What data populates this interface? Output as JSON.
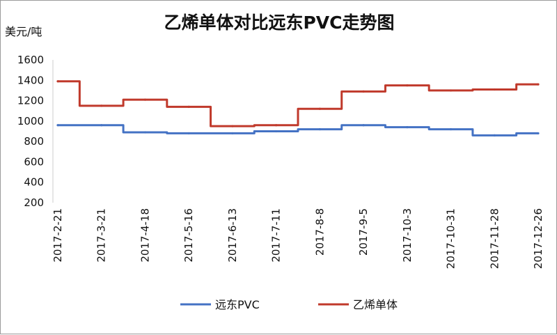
{
  "chart_data": {
    "type": "line",
    "title": "乙烯单体对比远东PVC走势图",
    "ylabel": "美元/吨",
    "xlabel": "",
    "ylim": [
      200,
      1600
    ],
    "yticks": [
      "200",
      "400",
      "600",
      "800",
      "1000",
      "1200",
      "1400",
      "1600"
    ],
    "grid": false,
    "legend_position": "bottom",
    "categories": [
      "2017-2-21",
      "2017-3-21",
      "2017-4-18",
      "2017-5-16",
      "2017-6-13",
      "2017-7-11",
      "2017-8-8",
      "2017-9-5",
      "2017-10-3",
      "2017-10-31",
      "2017-11-28",
      "2017-12-26"
    ],
    "series": [
      {
        "name": "远东PVC",
        "color": "#4472C4",
        "values": [
          960,
          960,
          890,
          880,
          880,
          900,
          920,
          960,
          940,
          920,
          860,
          880
        ]
      },
      {
        "name": "乙烯单体",
        "color": "#C0392B",
        "values": [
          1390,
          1150,
          1210,
          1140,
          950,
          960,
          1120,
          1290,
          1350,
          1300,
          1310,
          1360
        ]
      }
    ]
  }
}
